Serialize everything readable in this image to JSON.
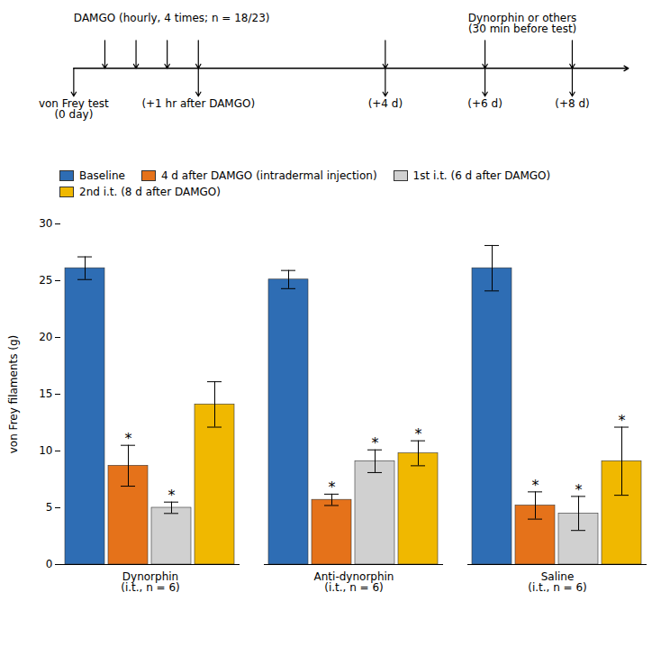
{
  "chart_data": {
    "type": "bar",
    "categories": [
      "Dynorphin\n(i.t., n = 6)",
      "Anti-dynorphin\n(i.t., n = 6)",
      "Saline\n(i.t., n = 6)"
    ],
    "series": [
      {
        "name": "Baseline",
        "color": "#2e6db4",
        "values": [
          26.1,
          25.1,
          26.1
        ],
        "errors": [
          1.0,
          0.8,
          2.0
        ],
        "significance": [
          false,
          false,
          false
        ]
      },
      {
        "name": "4 d after DAMGO (intradermal injection)",
        "color": "#e5721a",
        "values": [
          8.7,
          5.7,
          5.2
        ],
        "errors": [
          1.8,
          0.5,
          1.2
        ],
        "significance": [
          true,
          true,
          true
        ]
      },
      {
        "name": "1st i.t. (6 d after DAMGO)",
        "color": "#d0d0d0",
        "values": [
          5.0,
          9.1,
          4.5
        ],
        "errors": [
          0.5,
          1.0,
          1.5
        ],
        "significance": [
          true,
          true,
          true
        ]
      },
      {
        "name": "2nd i.t. (8 d after DAMGO)",
        "color": "#f0b800",
        "values": [
          14.1,
          9.8,
          9.1
        ],
        "errors": [
          2.0,
          1.1,
          3.0
        ],
        "significance": [
          false,
          true,
          true
        ]
      }
    ],
    "significance_label": "*",
    "ylabel": "von Frey filaments (g)",
    "ylim": [
      0,
      30
    ],
    "yticks": [
      0,
      5,
      10,
      15,
      20,
      25,
      30
    ],
    "annotations": [
      "DAMGO (hourly, 4 times; n = 18/23)",
      "Dynorphin or others\n(30 min before test)",
      "von Frey test\n(0 day)",
      "(+1 hr after DAMGO)",
      "(+4 d)",
      "(+6 d)",
      "(+8 d)"
    ]
  }
}
